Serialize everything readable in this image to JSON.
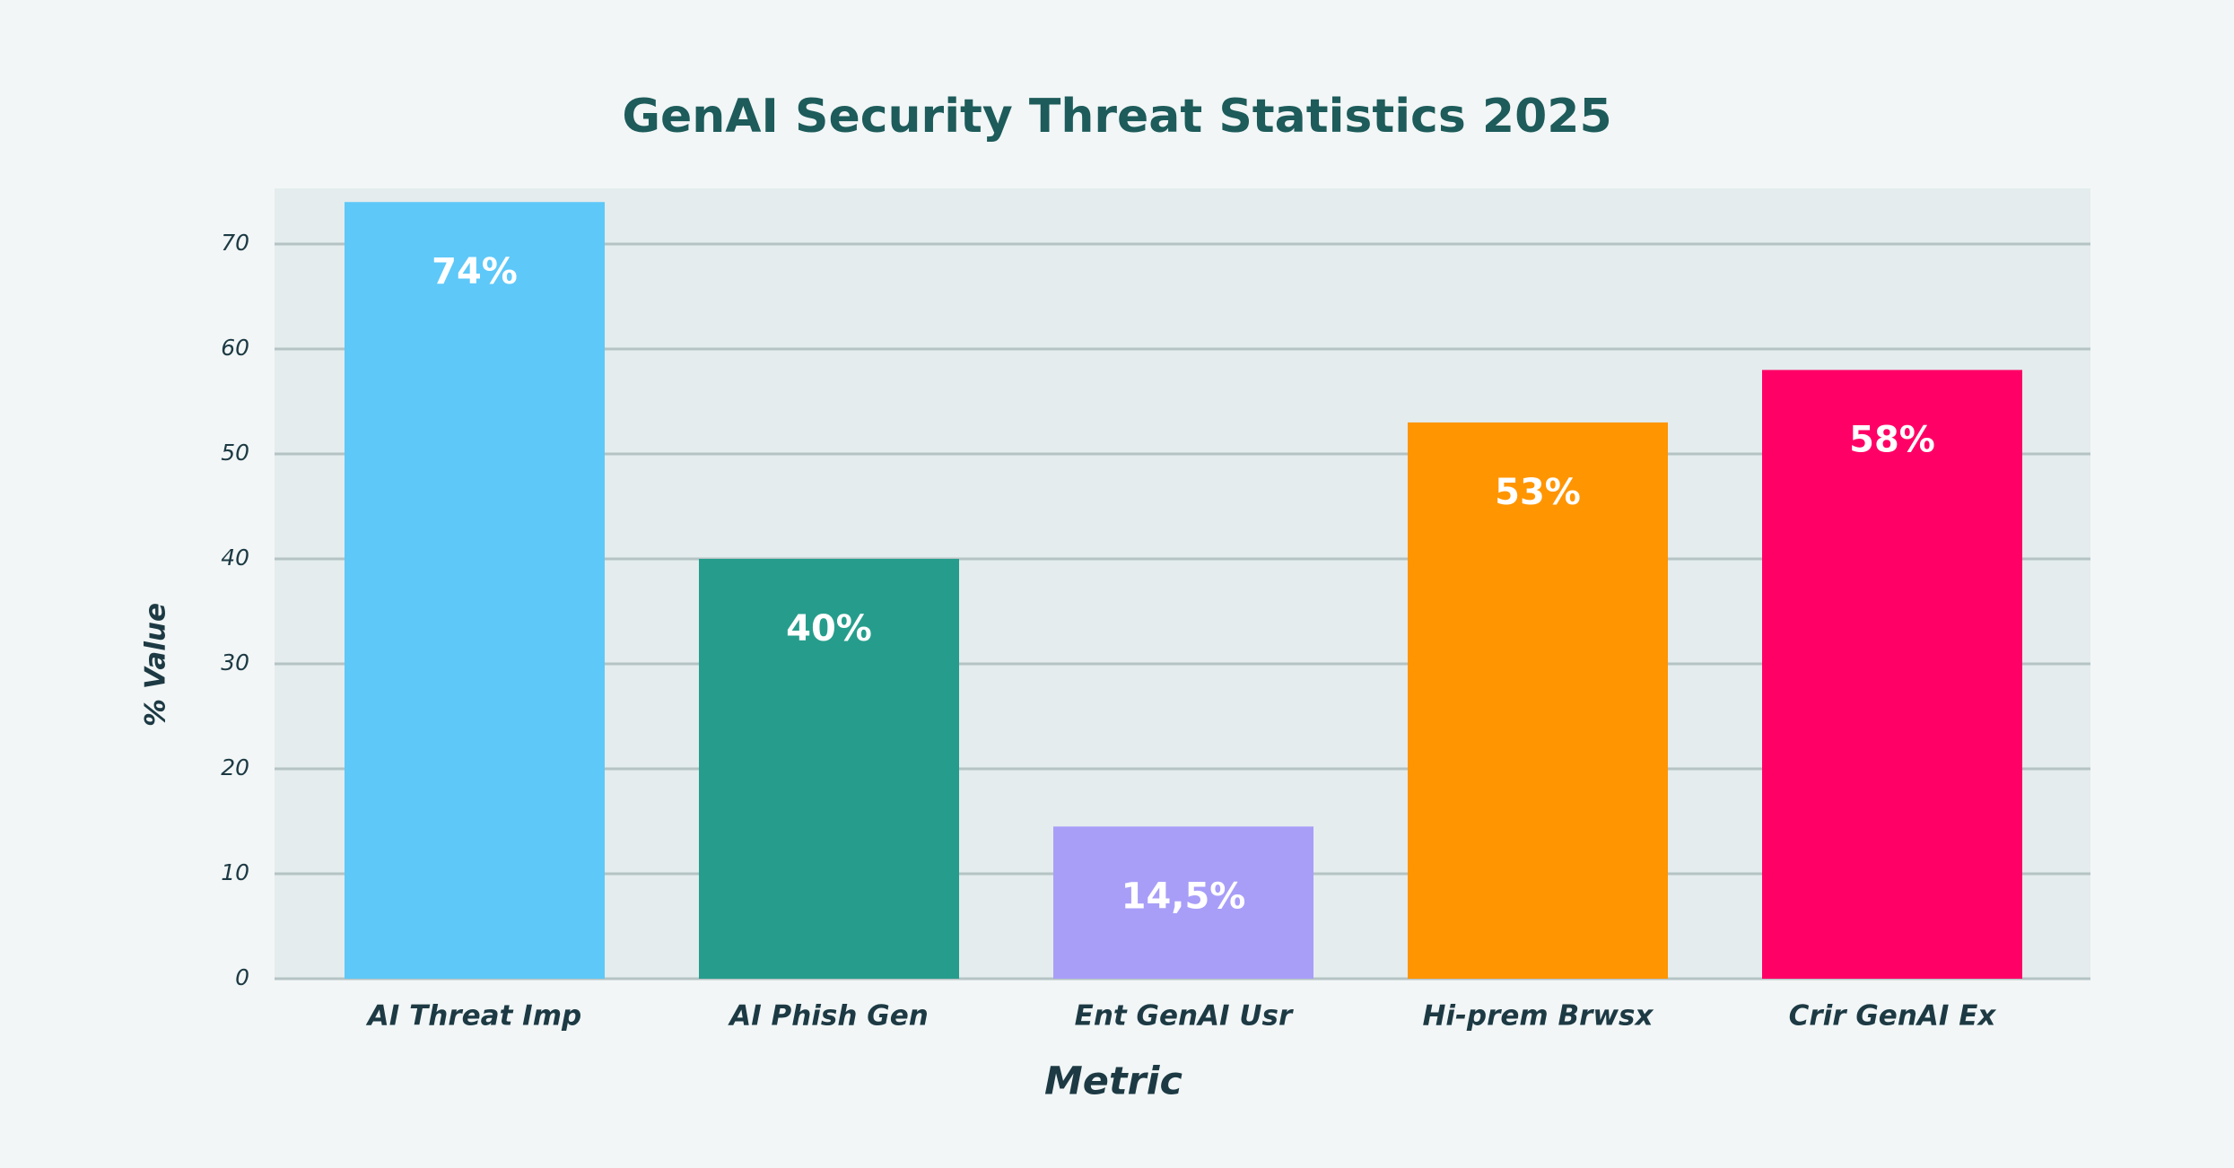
{
  "chart_data": {
    "type": "bar",
    "title": "GenAI Security Threat Statistics 2025",
    "x_label": "Metric",
    "y_label": "% Value",
    "categories": [
      "AI Threat Imp",
      "AI Phish Gen",
      "Ent GenAI Usr",
      "Hi-prem Brwsx",
      "Crir GenAI Ex"
    ],
    "values": [
      74,
      40,
      14.5,
      53,
      58
    ],
    "value_labels": [
      "74%",
      "40%",
      "14,5%",
      "53%",
      "58%"
    ],
    "colors": [
      "#5ec8f8",
      "#269d8c",
      "#a89ef8",
      "#ff9500",
      "#ff0066"
    ],
    "ylim": [
      0,
      75.3
    ],
    "yticks": [
      0,
      10,
      20,
      30,
      40,
      50,
      60,
      70
    ],
    "grid": true
  }
}
